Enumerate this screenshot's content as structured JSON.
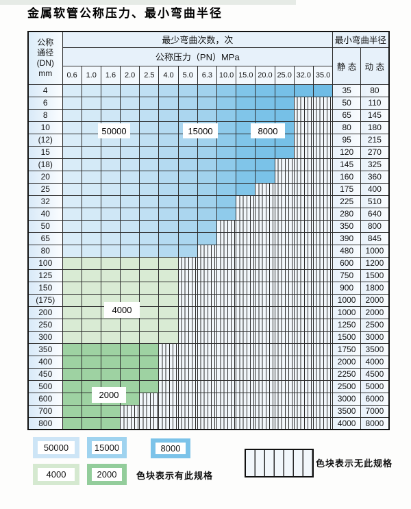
{
  "title": "金属软管公称压力、最小弯曲半径",
  "table": {
    "corner_header_lines": [
      "公称",
      "通径",
      "(DN)",
      "mm"
    ],
    "bend_cycles_header": "最少弯曲次数，次",
    "pressure_header": "公称压力（PN）MPa",
    "radius_header": "最小弯曲半径",
    "static_header": "静 态",
    "dynamic_header": "动 态",
    "pn_columns": [
      "0.6",
      "1.0",
      "1.6",
      "2.0",
      "2.5",
      "4.0",
      "5.0",
      "6.3",
      "10.0",
      "15.0",
      "20.0",
      "25.0",
      "32.0",
      "35.0"
    ],
    "rows": [
      {
        "dn": "4",
        "static": "35",
        "dynamic": "80",
        "last_colored": 13,
        "palette": "blue"
      },
      {
        "dn": "6",
        "static": "50",
        "dynamic": "110",
        "last_colored": 11,
        "palette": "blue"
      },
      {
        "dn": "8",
        "static": "65",
        "dynamic": "145",
        "last_colored": 11,
        "palette": "blue"
      },
      {
        "dn": "10",
        "static": "80",
        "dynamic": "180",
        "last_colored": 11,
        "palette": "blue"
      },
      {
        "dn": "(12)",
        "static": "95",
        "dynamic": "215",
        "last_colored": 11,
        "palette": "blue"
      },
      {
        "dn": "15",
        "static": "120",
        "dynamic": "270",
        "last_colored": 11,
        "palette": "blue"
      },
      {
        "dn": "(18)",
        "static": "145",
        "dynamic": "325",
        "last_colored": 10,
        "palette": "blue"
      },
      {
        "dn": "20",
        "static": "160",
        "dynamic": "360",
        "last_colored": 10,
        "palette": "blue"
      },
      {
        "dn": "25",
        "static": "175",
        "dynamic": "400",
        "last_colored": 9,
        "palette": "blue"
      },
      {
        "dn": "32",
        "static": "225",
        "dynamic": "510",
        "last_colored": 8,
        "palette": "blue"
      },
      {
        "dn": "40",
        "static": "280",
        "dynamic": "640",
        "last_colored": 8,
        "palette": "blue"
      },
      {
        "dn": "50",
        "static": "350",
        "dynamic": "800",
        "last_colored": 7,
        "palette": "blue"
      },
      {
        "dn": "65",
        "static": "390",
        "dynamic": "845",
        "last_colored": 7,
        "palette": "blue"
      },
      {
        "dn": "80",
        "static": "480",
        "dynamic": "1000",
        "last_colored": 6,
        "palette": "blue"
      },
      {
        "dn": "100",
        "static": "600",
        "dynamic": "1200",
        "last_colored": 5,
        "palette": "green_light"
      },
      {
        "dn": "125",
        "static": "750",
        "dynamic": "1500",
        "last_colored": 5,
        "palette": "green_light"
      },
      {
        "dn": "150",
        "static": "900",
        "dynamic": "1800",
        "last_colored": 5,
        "palette": "green_light"
      },
      {
        "dn": "(175)",
        "static": "1000",
        "dynamic": "2000",
        "last_colored": 5,
        "palette": "green_light"
      },
      {
        "dn": "200",
        "static": "1000",
        "dynamic": "2000",
        "last_colored": 5,
        "palette": "green_light"
      },
      {
        "dn": "250",
        "static": "1250",
        "dynamic": "2500",
        "last_colored": 5,
        "palette": "green_light"
      },
      {
        "dn": "300",
        "static": "1500",
        "dynamic": "3000",
        "last_colored": 5,
        "palette": "green_light"
      },
      {
        "dn": "350",
        "static": "1750",
        "dynamic": "3500",
        "last_colored": 4,
        "palette": "green_dark"
      },
      {
        "dn": "400",
        "static": "2000",
        "dynamic": "4000",
        "last_colored": 4,
        "palette": "green_dark"
      },
      {
        "dn": "450",
        "static": "2250",
        "dynamic": "4500",
        "last_colored": 4,
        "palette": "green_dark"
      },
      {
        "dn": "500",
        "static": "2500",
        "dynamic": "5000",
        "last_colored": 4,
        "palette": "green_dark"
      },
      {
        "dn": "600",
        "static": "3000",
        "dynamic": "6000",
        "last_colored": 3,
        "palette": "green_dark"
      },
      {
        "dn": "700",
        "static": "3500",
        "dynamic": "7000",
        "last_colored": 2,
        "palette": "green_dark"
      },
      {
        "dn": "800",
        "static": "4000",
        "dynamic": "8000",
        "last_colored": 2,
        "palette": "green_dark"
      }
    ]
  },
  "zone_labels": [
    "50000",
    "15000",
    "8000",
    "4000",
    "2000"
  ],
  "legend": {
    "items": [
      {
        "label": "50000"
      },
      {
        "label": "15000"
      },
      {
        "label": "8000"
      },
      {
        "label": "4000"
      },
      {
        "label": "2000"
      }
    ],
    "available_caption": "色块表示有此规格",
    "unavailable_caption": "色块表示无此规格"
  },
  "colors": {
    "blue_shades": [
      "#d9ecf8",
      "#d4eaf7",
      "#cfe7f6",
      "#c9e4f5",
      "#c0e0f3",
      "#b4daf1",
      "#abd6ef",
      "#a1d2ed",
      "#8fcbeb",
      "#80c5e9",
      "#7ac2e8",
      "#76c0e7",
      "#72bee6",
      "#6fbce5"
    ],
    "green_light": "#d9ebd4",
    "green_dark": "#9ed2a2",
    "hatch_bg": "#f2f7fb",
    "hatch_line": "#2b2b2b",
    "grid_line": "#2b2b2b",
    "header_bg": "#e7f1fa",
    "legend_swatches": {
      "l50000": "#cde5f6",
      "l15000": "#9fd3ef",
      "l8000": "#7cc3e9",
      "l4000": "#d5e9d0",
      "l2000": "#93cd9b"
    }
  }
}
